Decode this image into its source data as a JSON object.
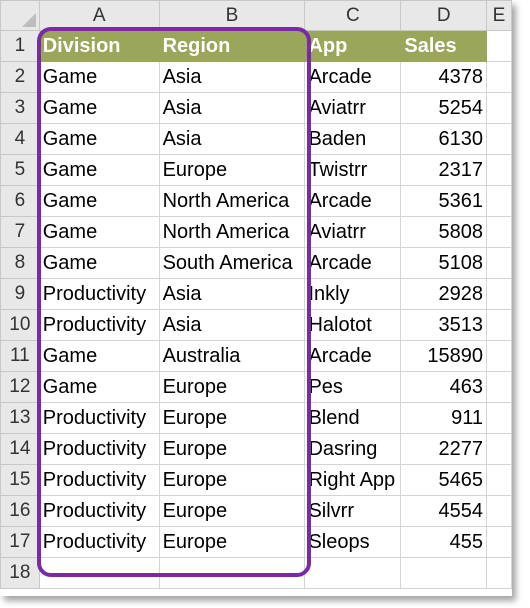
{
  "columns": [
    "A",
    "B",
    "C",
    "D",
    "E"
  ],
  "header": [
    "Division",
    "Region",
    "App",
    "Sales"
  ],
  "rows": [
    [
      "Game",
      "Asia",
      "Arcade",
      "4378"
    ],
    [
      "Game",
      "Asia",
      "Aviatrr",
      "5254"
    ],
    [
      "Game",
      "Asia",
      "Baden",
      "6130"
    ],
    [
      "Game",
      "Europe",
      "Twistrr",
      "2317"
    ],
    [
      "Game",
      "North America",
      "Arcade",
      "5361"
    ],
    [
      "Game",
      "North America",
      "Aviatrr",
      "5808"
    ],
    [
      "Game",
      "South America",
      "Arcade",
      "5108"
    ],
    [
      "Productivity",
      "Asia",
      "Inkly",
      "2928"
    ],
    [
      "Productivity",
      "Asia",
      "Halotot",
      "3513"
    ],
    [
      "Game",
      "Australia",
      "Arcade",
      "15890"
    ],
    [
      "Game",
      "Europe",
      "Pes",
      "463"
    ],
    [
      "Productivity",
      "Europe",
      "Blend",
      "911"
    ],
    [
      "Productivity",
      "Europe",
      "Dasring",
      "2277"
    ],
    [
      "Productivity",
      "Europe",
      "Right App",
      "5465"
    ],
    [
      "Productivity",
      "Europe",
      "Silvrr",
      "4554"
    ],
    [
      "Productivity",
      "Europe",
      "Sleops",
      "455"
    ]
  ],
  "row_numbers": [
    "1",
    "2",
    "3",
    "4",
    "5",
    "6",
    "7",
    "8",
    "9",
    "10",
    "11",
    "12",
    "13",
    "14",
    "15",
    "16",
    "17",
    "18"
  ],
  "colors": {
    "header_fill": "#9aa659",
    "highlight_border": "#7a2aa6"
  }
}
